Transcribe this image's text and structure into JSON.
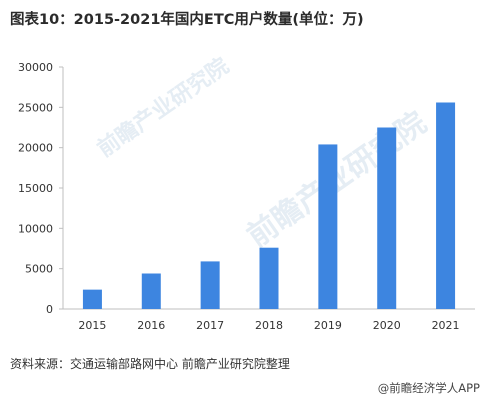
{
  "title": "图表10：2015-2021年国内ETC用户数量(单位：万)",
  "source": "资料来源：交通运输部路网中心 前瞻产业研究院整理",
  "brand": "@前瞻经济学人APP",
  "watermark": {
    "text_1": "前瞻产业研究院",
    "text_2": "前瞻产业研究院"
  },
  "colors": {
    "bar": "#3d85e0",
    "axis": "#bfbfbf",
    "text": "#333333"
  },
  "chart_data": {
    "type": "bar",
    "title": "图表10：2015-2021年国内ETC用户数量(单位：万)",
    "xlabel": "",
    "ylabel": "",
    "categories": [
      "2015",
      "2016",
      "2017",
      "2018",
      "2019",
      "2020",
      "2021"
    ],
    "values": [
      2400,
      4400,
      5900,
      7600,
      20400,
      22500,
      25600
    ],
    "ylim": [
      0,
      30000
    ],
    "yticks": [
      0,
      5000,
      10000,
      15000,
      20000,
      25000,
      30000
    ],
    "grid": false,
    "legend": "none"
  }
}
